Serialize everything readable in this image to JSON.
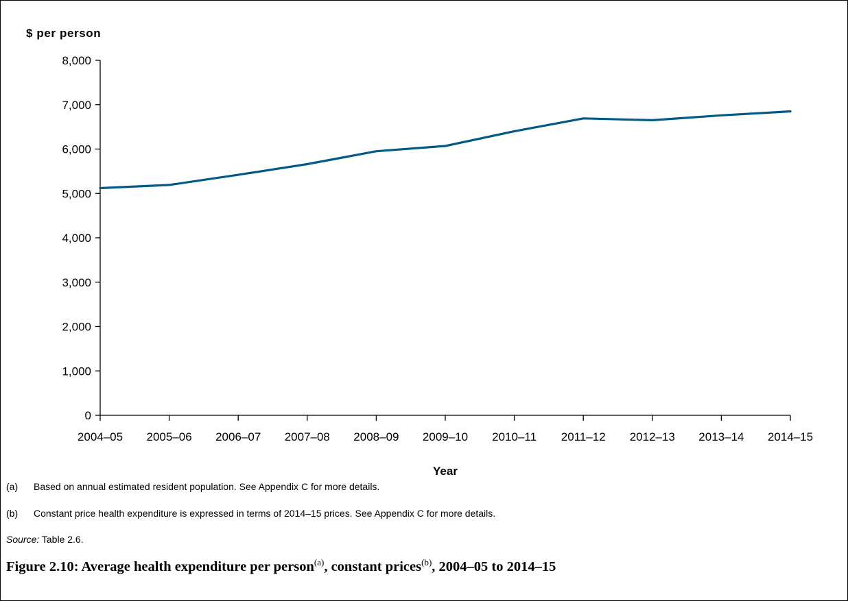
{
  "chart_data": {
    "type": "line",
    "ylabel": "$ per person",
    "xlabel": "Year",
    "ylim": [
      0,
      8000
    ],
    "y_ticks": [
      "0",
      "1,000",
      "2,000",
      "3,000",
      "4,000",
      "5,000",
      "6,000",
      "7,000",
      "8,000"
    ],
    "categories": [
      "2004–05",
      "2005–06",
      "2006–07",
      "2007–08",
      "2008–09",
      "2009–10",
      "2010–11",
      "2011–12",
      "2012–13",
      "2013–14",
      "2014–15"
    ],
    "series": [
      {
        "values": [
          5120,
          5190,
          5420,
          5660,
          5950,
          6070,
          6400,
          6690,
          6650,
          6760,
          6850
        ],
        "color": "#005a87"
      }
    ],
    "grid": false
  },
  "notes": [
    {
      "tag": "(a)",
      "text": "Based on annual estimated resident population. See Appendix C for more details."
    },
    {
      "tag": "(b)",
      "text": "Constant price health expenditure is expressed in terms of 2014–15 prices. See Appendix C for more details."
    }
  ],
  "source": {
    "lead": "Source:",
    "text": " Table 2.6."
  },
  "caption": {
    "part1": "Figure 2.10: Average health expenditure per person",
    "ref1": "(a)",
    "part2": ", constant prices",
    "ref2": "(b)",
    "part3": ", 2004–05 to 2014–15"
  }
}
